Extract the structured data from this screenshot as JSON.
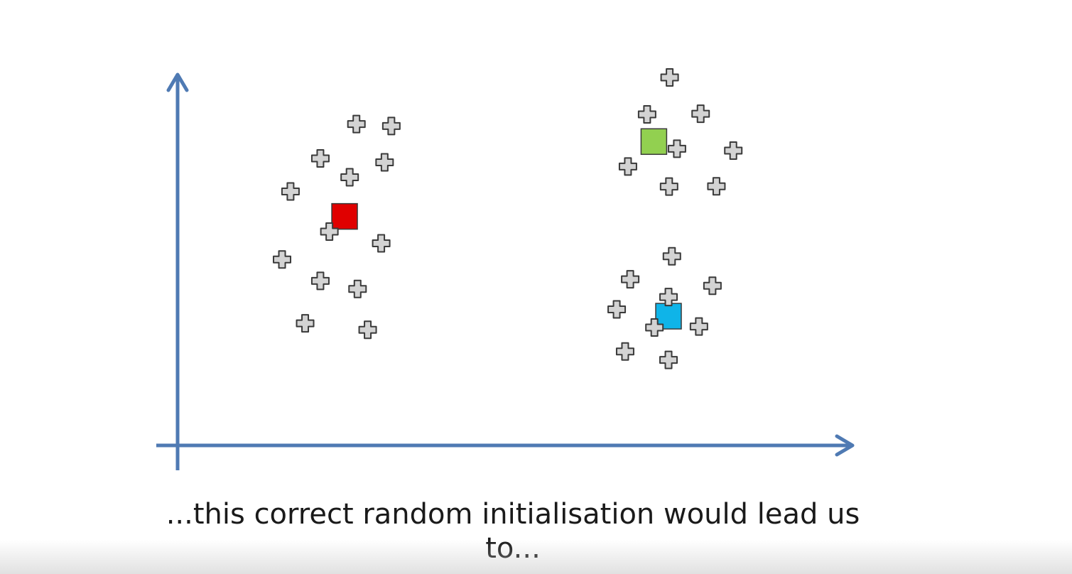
{
  "caption": "...this correct random initialisation would lead us to...",
  "colors": {
    "axis": "#4f7ab3",
    "point_fill": "#d3d3d3",
    "point_stroke": "#3a3a3a"
  },
  "chart_data": {
    "type": "scatter",
    "title": "",
    "xlabel": "",
    "ylabel": "",
    "xlim": [
      0,
      100
    ],
    "ylim": [
      0,
      100
    ],
    "grid": false,
    "series": [
      {
        "marker": "plus",
        "points": [
          [
            21.4,
            85.6
          ],
          [
            27.6,
            85.0
          ],
          [
            15.0,
            75.0
          ],
          [
            26.4,
            73.8
          ],
          [
            20.2,
            69.2
          ],
          [
            9.7,
            64.8
          ],
          [
            16.6,
            52.4
          ],
          [
            25.8,
            48.8
          ],
          [
            8.2,
            43.8
          ],
          [
            15.0,
            37.2
          ],
          [
            21.6,
            34.7
          ],
          [
            12.3,
            24.1
          ],
          [
            23.4,
            22.1
          ],
          [
            77.0,
            100.0
          ],
          [
            73.0,
            88.6
          ],
          [
            82.5,
            88.8
          ],
          [
            78.3,
            78.0
          ],
          [
            88.3,
            77.4
          ],
          [
            69.6,
            72.5
          ],
          [
            76.9,
            66.3
          ],
          [
            85.3,
            66.4
          ],
          [
            77.4,
            44.8
          ],
          [
            70.0,
            37.7
          ],
          [
            84.6,
            35.7
          ],
          [
            76.8,
            32.2
          ],
          [
            67.6,
            28.4
          ],
          [
            74.3,
            22.8
          ],
          [
            82.2,
            23.1
          ],
          [
            69.1,
            15.4
          ],
          [
            76.8,
            12.8
          ]
        ]
      }
    ],
    "centroids": [
      {
        "x": 19.3,
        "y": 57.1,
        "color": "#e00000"
      },
      {
        "x": 74.2,
        "y": 80.2,
        "color": "#92d050"
      },
      {
        "x": 76.8,
        "y": 26.3,
        "color": "#0fb4e8"
      }
    ]
  }
}
